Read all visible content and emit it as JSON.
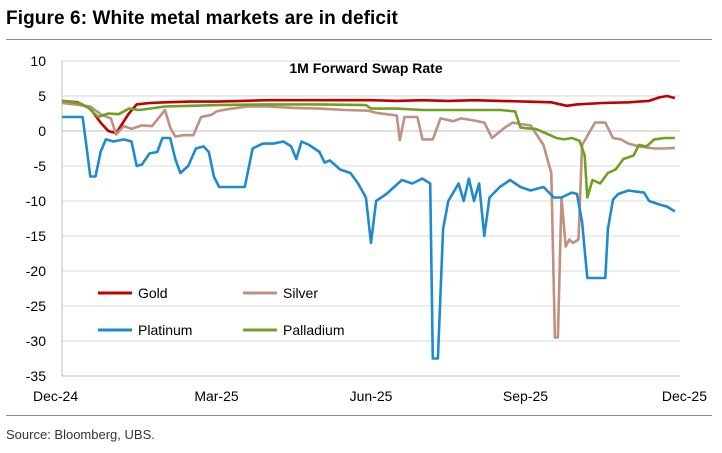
{
  "figure": {
    "title": "Figure 6: White metal markets are in deficit",
    "source": "Source: Bloomberg, UBS."
  },
  "chart_data": {
    "type": "line",
    "title": "1M Forward Swap Rate",
    "xlabel": "",
    "ylabel": "",
    "ylim": [
      -35,
      10
    ],
    "yticks": [
      10,
      5,
      0,
      -5,
      -10,
      -15,
      -20,
      -25,
      -30,
      -35
    ],
    "xlim": [
      0,
      12
    ],
    "xticks": [
      {
        "label": "Dec-24",
        "pos": 0
      },
      {
        "label": "Mar-25",
        "pos": 3
      },
      {
        "label": "Jun-25",
        "pos": 6
      },
      {
        "label": "Sep-25",
        "pos": 9
      },
      {
        "label": "Dec-25",
        "pos": 12
      }
    ],
    "grid": "horizontal",
    "legend_placement": "lower-left",
    "series": [
      {
        "name": "Gold",
        "color": "#c00000",
        "points": [
          [
            0,
            4.3
          ],
          [
            0.3,
            4.1
          ],
          [
            0.55,
            3.2
          ],
          [
            0.75,
            1.2
          ],
          [
            0.9,
            0.0
          ],
          [
            1.05,
            -0.3
          ],
          [
            1.15,
            0.8
          ],
          [
            1.3,
            2.5
          ],
          [
            1.45,
            3.8
          ],
          [
            1.7,
            4.0
          ],
          [
            2,
            4.1
          ],
          [
            2.5,
            4.2
          ],
          [
            3,
            4.2
          ],
          [
            3.5,
            4.3
          ],
          [
            4,
            4.4
          ],
          [
            5,
            4.4
          ],
          [
            6,
            4.4
          ],
          [
            6.5,
            4.3
          ],
          [
            7,
            4.4
          ],
          [
            7.5,
            4.3
          ],
          [
            8,
            4.4
          ],
          [
            8.5,
            4.3
          ],
          [
            9,
            4.2
          ],
          [
            9.5,
            4.1
          ],
          [
            9.8,
            3.6
          ],
          [
            10.0,
            3.8
          ],
          [
            10.5,
            4.0
          ],
          [
            11,
            4.1
          ],
          [
            11.4,
            4.3
          ],
          [
            11.6,
            4.8
          ],
          [
            11.75,
            5.0
          ],
          [
            11.9,
            4.7
          ]
        ]
      },
      {
        "name": "Silver",
        "color": "#c09080",
        "points": [
          [
            0,
            4.0
          ],
          [
            0.35,
            3.7
          ],
          [
            0.55,
            3.5
          ],
          [
            0.75,
            2.4
          ],
          [
            0.95,
            1.8
          ],
          [
            1.05,
            -0.5
          ],
          [
            1.2,
            0.7
          ],
          [
            1.35,
            0.3
          ],
          [
            1.55,
            0.8
          ],
          [
            1.75,
            0.7
          ],
          [
            2.0,
            3.0
          ],
          [
            2.1,
            0.5
          ],
          [
            2.2,
            -0.8
          ],
          [
            2.35,
            -0.6
          ],
          [
            2.55,
            -0.6
          ],
          [
            2.7,
            2.0
          ],
          [
            2.9,
            2.3
          ],
          [
            3.0,
            2.8
          ],
          [
            3.2,
            3.1
          ],
          [
            3.6,
            3.5
          ],
          [
            4.0,
            3.5
          ],
          [
            4.5,
            3.3
          ],
          [
            5.0,
            3.2
          ],
          [
            5.5,
            3.0
          ],
          [
            5.95,
            2.9
          ],
          [
            6.1,
            2.6
          ],
          [
            6.3,
            2.4
          ],
          [
            6.5,
            2.2
          ],
          [
            6.56,
            -1.3
          ],
          [
            6.65,
            2.0
          ],
          [
            6.9,
            2.0
          ],
          [
            7.0,
            -1.2
          ],
          [
            7.2,
            -1.2
          ],
          [
            7.35,
            1.8
          ],
          [
            7.6,
            1.4
          ],
          [
            7.75,
            1.8
          ],
          [
            8.0,
            1.5
          ],
          [
            8.2,
            1.2
          ],
          [
            8.35,
            -1.0
          ],
          [
            8.45,
            -0.4
          ],
          [
            8.6,
            0.5
          ],
          [
            8.75,
            1.2
          ],
          [
            8.9,
            1.0
          ],
          [
            9.1,
            0.8
          ],
          [
            9.35,
            -2.0
          ],
          [
            9.5,
            -6.0
          ],
          [
            9.57,
            -29.5
          ],
          [
            9.63,
            -29.5
          ],
          [
            9.7,
            -9.5
          ],
          [
            9.78,
            -16.5
          ],
          [
            9.85,
            -15.5
          ],
          [
            9.92,
            -16.0
          ],
          [
            10.03,
            -15.5
          ],
          [
            10.1,
            -2.0
          ],
          [
            10.35,
            1.2
          ],
          [
            10.55,
            1.2
          ],
          [
            10.7,
            -1.0
          ],
          [
            10.85,
            -1.2
          ],
          [
            11.0,
            -1.8
          ],
          [
            11.2,
            -2.2
          ],
          [
            11.5,
            -2.5
          ],
          [
            11.7,
            -2.5
          ],
          [
            11.9,
            -2.4
          ]
        ]
      },
      {
        "name": "Platinum",
        "color": "#1f8ad0",
        "points": [
          [
            0,
            2.0
          ],
          [
            0.4,
            2.0
          ],
          [
            0.45,
            -0.8
          ],
          [
            0.55,
            -6.5
          ],
          [
            0.65,
            -6.5
          ],
          [
            0.75,
            -3.0
          ],
          [
            0.85,
            -1.2
          ],
          [
            1.0,
            -1.5
          ],
          [
            1.2,
            -1.2
          ],
          [
            1.35,
            -1.5
          ],
          [
            1.45,
            -5.0
          ],
          [
            1.55,
            -4.8
          ],
          [
            1.7,
            -3.2
          ],
          [
            1.85,
            -3.0
          ],
          [
            1.95,
            -1.0
          ],
          [
            2.1,
            -1.0
          ],
          [
            2.2,
            -4.0
          ],
          [
            2.3,
            -6.0
          ],
          [
            2.45,
            -5.0
          ],
          [
            2.6,
            -2.5
          ],
          [
            2.75,
            -2.2
          ],
          [
            2.85,
            -3.0
          ],
          [
            2.95,
            -6.5
          ],
          [
            3.05,
            -8.0
          ],
          [
            3.3,
            -8.0
          ],
          [
            3.55,
            -8.0
          ],
          [
            3.7,
            -2.5
          ],
          [
            3.9,
            -1.8
          ],
          [
            4.1,
            -1.8
          ],
          [
            4.3,
            -1.5
          ],
          [
            4.45,
            -2.2
          ],
          [
            4.55,
            -4.0
          ],
          [
            4.65,
            -1.5
          ],
          [
            4.8,
            -2.0
          ],
          [
            5.0,
            -3.0
          ],
          [
            5.1,
            -4.5
          ],
          [
            5.2,
            -4.2
          ],
          [
            5.4,
            -5.5
          ],
          [
            5.6,
            -6.0
          ],
          [
            5.75,
            -7.5
          ],
          [
            5.9,
            -9.5
          ],
          [
            6.0,
            -16.0
          ],
          [
            6.1,
            -10.0
          ],
          [
            6.3,
            -9.0
          ],
          [
            6.6,
            -7.0
          ],
          [
            6.8,
            -7.5
          ],
          [
            7.0,
            -6.8
          ],
          [
            7.15,
            -7.5
          ],
          [
            7.2,
            -32.5
          ],
          [
            7.3,
            -32.5
          ],
          [
            7.4,
            -14.0
          ],
          [
            7.5,
            -10.0
          ],
          [
            7.7,
            -7.5
          ],
          [
            7.8,
            -10.0
          ],
          [
            7.9,
            -6.8
          ],
          [
            8.0,
            -10.0
          ],
          [
            8.1,
            -7.5
          ],
          [
            8.2,
            -15.0
          ],
          [
            8.3,
            -9.5
          ],
          [
            8.5,
            -8.0
          ],
          [
            8.7,
            -7.0
          ],
          [
            8.9,
            -8.0
          ],
          [
            9.1,
            -8.5
          ],
          [
            9.35,
            -8.0
          ],
          [
            9.55,
            -9.5
          ],
          [
            9.7,
            -9.5
          ],
          [
            9.9,
            -8.8
          ],
          [
            10.0,
            -9.0
          ],
          [
            10.1,
            -13.0
          ],
          [
            10.2,
            -21.0
          ],
          [
            10.45,
            -21.0
          ],
          [
            10.55,
            -21.0
          ],
          [
            10.6,
            -14.0
          ],
          [
            10.7,
            -9.8
          ],
          [
            10.8,
            -9.0
          ],
          [
            11.0,
            -8.5
          ],
          [
            11.3,
            -8.8
          ],
          [
            11.4,
            -10.0
          ],
          [
            11.6,
            -10.5
          ],
          [
            11.75,
            -10.8
          ],
          [
            11.9,
            -11.5
          ]
        ]
      },
      {
        "name": "Palladium",
        "color": "#70a020",
        "points": [
          [
            0,
            4.3
          ],
          [
            0.3,
            4.0
          ],
          [
            0.5,
            3.4
          ],
          [
            0.7,
            2.0
          ],
          [
            0.9,
            2.5
          ],
          [
            1.1,
            2.4
          ],
          [
            1.3,
            3.2
          ],
          [
            1.5,
            3.0
          ],
          [
            2.0,
            3.5
          ],
          [
            2.5,
            3.6
          ],
          [
            3.0,
            3.7
          ],
          [
            4.0,
            3.8
          ],
          [
            5.0,
            3.8
          ],
          [
            5.9,
            3.7
          ],
          [
            6.0,
            3.2
          ],
          [
            6.5,
            3.2
          ],
          [
            7.0,
            3.0
          ],
          [
            7.5,
            3.0
          ],
          [
            8.0,
            3.0
          ],
          [
            8.5,
            3.0
          ],
          [
            8.8,
            2.8
          ],
          [
            8.9,
            0.5
          ],
          [
            9.0,
            0.4
          ],
          [
            9.2,
            0.3
          ],
          [
            9.45,
            -0.5
          ],
          [
            9.6,
            -1.0
          ],
          [
            9.75,
            -1.2
          ],
          [
            9.9,
            -1.0
          ],
          [
            10.05,
            -1.4
          ],
          [
            10.15,
            -3.5
          ],
          [
            10.2,
            -9.5
          ],
          [
            10.3,
            -7.0
          ],
          [
            10.45,
            -7.5
          ],
          [
            10.6,
            -6.0
          ],
          [
            10.75,
            -5.5
          ],
          [
            10.9,
            -4.0
          ],
          [
            11.1,
            -3.5
          ],
          [
            11.2,
            -2.0
          ],
          [
            11.35,
            -2.2
          ],
          [
            11.5,
            -1.2
          ],
          [
            11.7,
            -1.0
          ],
          [
            11.9,
            -1.0
          ]
        ]
      }
    ]
  }
}
